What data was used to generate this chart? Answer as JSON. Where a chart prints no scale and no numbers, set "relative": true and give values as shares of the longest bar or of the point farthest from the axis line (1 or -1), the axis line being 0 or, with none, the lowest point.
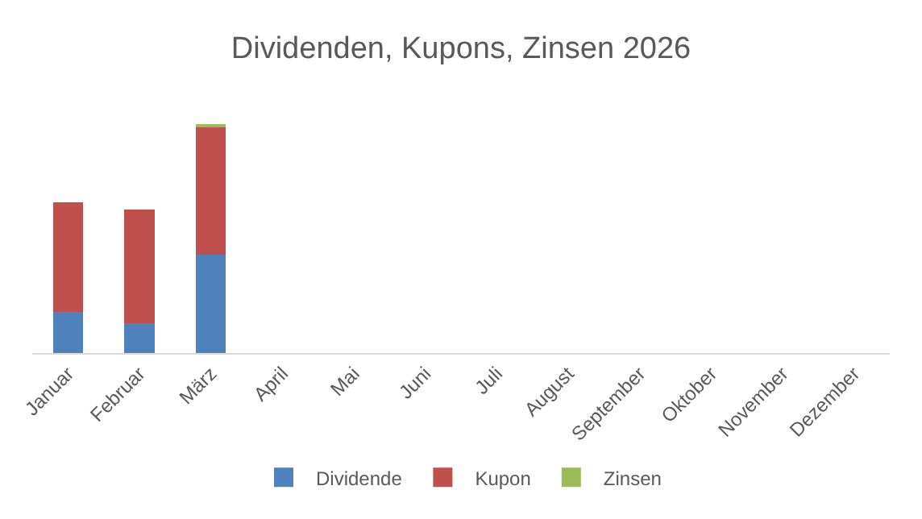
{
  "chart_data": {
    "type": "bar",
    "title": "Dividenden, Kupons, Zinsen 2026",
    "relative": true,
    "stacked": true,
    "legend": "bottom",
    "categories": [
      "Januar",
      "Februar",
      "März",
      "April",
      "Mai",
      "Juni",
      "Juli",
      "August",
      "September",
      "Oktober",
      "November",
      "Dezember"
    ],
    "series": [
      {
        "name": "Dividende",
        "color": "#4f81bd",
        "values": [
          0.18,
          0.13,
          0.43,
          0,
          0,
          0,
          0,
          0,
          0,
          0,
          0,
          0
        ]
      },
      {
        "name": "Kupon",
        "color": "#c0504d",
        "values": [
          0.48,
          0.5,
          0.56,
          0,
          0,
          0,
          0,
          0,
          0,
          0,
          0,
          0
        ]
      },
      {
        "name": "Zinsen",
        "color": "#9bbb59",
        "values": [
          0,
          0,
          0.01,
          0,
          0,
          0,
          0,
          0,
          0,
          0,
          0,
          0
        ]
      }
    ]
  }
}
